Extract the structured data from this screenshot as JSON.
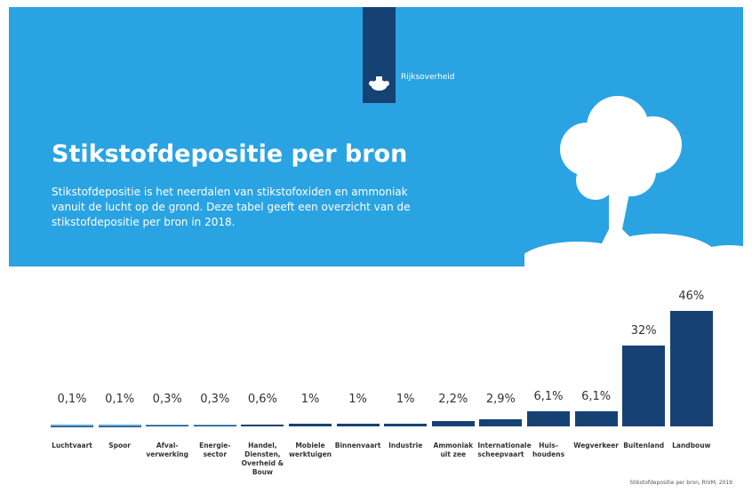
{
  "header": {
    "brand": "Rijksoverheid",
    "title": "Stikstofdepositie per bron",
    "description": "Stikstofdepositie is het neerdalen van stikstofoxiden en ammoniak vanuit de lucht op de grond. Deze tabel geeft een overzicht van de stikstofdepositie per bron in 2018."
  },
  "chart_data": {
    "type": "bar",
    "categories": [
      "Luchtvaart",
      "Spoor",
      "Afval­verwerking",
      "Energie­sector",
      "Handel, Diensten, Overheid & Bouw",
      "Mobiele werktuigen",
      "Binnen­vaart",
      "Industrie",
      "Ammoniak uit zee",
      "Internationale scheepvaart",
      "Huis­houdens",
      "Wegverkeer",
      "Buitenland",
      "Landbouw"
    ],
    "values": [
      0.1,
      0.1,
      0.3,
      0.3,
      0.6,
      1,
      1,
      1,
      2.2,
      2.9,
      6.1,
      6.1,
      32,
      46
    ],
    "value_labels": [
      "0,1%",
      "0,1%",
      "0,3%",
      "0,3%",
      "0,6%",
      "1%",
      "1%",
      "1%",
      "2,2%",
      "2,9%",
      "6,1%",
      "6,1%",
      "32%",
      "46%"
    ],
    "color": "#154273",
    "source": "Stikstofdepositie per bron, RIVM, 2019"
  }
}
